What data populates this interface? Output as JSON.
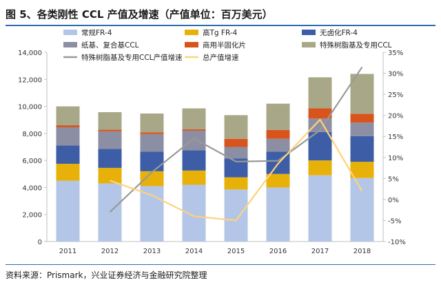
{
  "header": {
    "title": "图 5、各类刚性 CCL 产值及增速（产值单位：百万美元）"
  },
  "footer": {
    "source": "资料来源：Prismark，兴业证券经济与金融研究院整理"
  },
  "colors": {
    "rule": "#2d6bb0",
    "fr4_standard": "#b4c6e7",
    "high_tg": "#e7b10a",
    "halogen_free": "#3d5ea6",
    "paper_composite": "#8c8fa3",
    "commercial_semicured": "#d9541c",
    "special_resin": "#a8a888",
    "line_special_growth": "#999999",
    "line_total_growth": "#ffd27a"
  },
  "chart_data": {
    "type": "bar",
    "stacked": true,
    "categories": [
      "2011",
      "2012",
      "2013",
      "2014",
      "2015",
      "2016",
      "2017",
      "2018"
    ],
    "series": [
      {
        "name": "常规FR-4",
        "colorKey": "fr4_standard",
        "values": [
          4500,
          4300,
          4100,
          4200,
          3850,
          4000,
          4900,
          4700
        ]
      },
      {
        "name": "高Tg FR-4",
        "colorKey": "high_tg",
        "values": [
          1250,
          1150,
          1100,
          1050,
          900,
          1000,
          1100,
          1200
        ]
      },
      {
        "name": "无卤化FR-4",
        "colorKey": "halogen_free",
        "values": [
          1350,
          1400,
          1450,
          1500,
          1400,
          1650,
          2100,
          1900
        ]
      },
      {
        "name": "纸基、复合基CCL",
        "colorKey": "paper_composite",
        "values": [
          1350,
          1300,
          1300,
          1450,
          850,
          950,
          1000,
          1000
        ]
      },
      {
        "name": "商用半固化片",
        "colorKey": "commercial_semicured",
        "values": [
          150,
          120,
          120,
          100,
          600,
          650,
          750,
          650
        ]
      },
      {
        "name": "特殊树脂基及专用CCL",
        "colorKey": "special_resin",
        "values": [
          1400,
          1300,
          1400,
          1550,
          1750,
          1950,
          2300,
          2950
        ]
      }
    ],
    "lines": [
      {
        "name": "特殊树脂基及专用CCL产值增速",
        "colorKey": "line_special_growth",
        "values": [
          null,
          -3,
          6.5,
          14.5,
          9,
          9.2,
          16.5,
          31.5
        ]
      },
      {
        "name": "总产值增速",
        "colorKey": "line_total_growth",
        "values": [
          null,
          4.5,
          1,
          -4,
          -5,
          8.5,
          19,
          2
        ]
      }
    ],
    "y_left": {
      "min": 0,
      "max": 14000,
      "step": 2000,
      "ticks": [
        "0",
        "2,000",
        "4,000",
        "6,000",
        "8,000",
        "10,000",
        "12,000",
        "14,000"
      ]
    },
    "y_right": {
      "min": -10,
      "max": 35,
      "step": 5,
      "ticks": [
        "-10%",
        "-5%",
        "0%",
        "5%",
        "10%",
        "15%",
        "20%",
        "25%",
        "30%",
        "35%"
      ]
    },
    "legend_position": "top"
  }
}
